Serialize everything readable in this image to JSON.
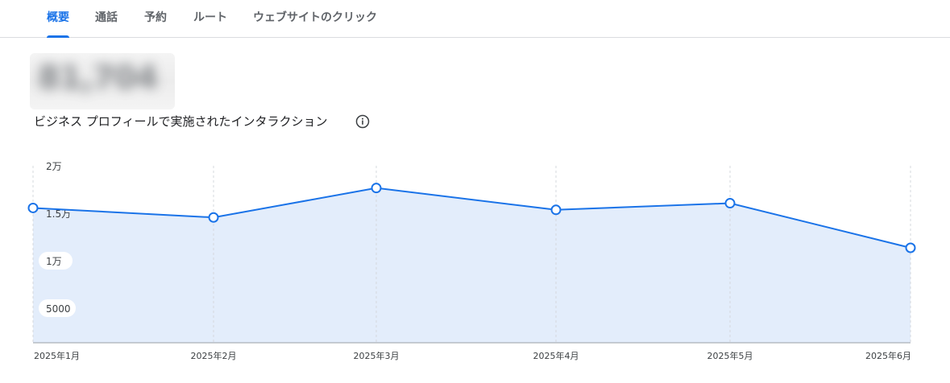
{
  "tabs": [
    {
      "label": "概要",
      "active": true
    },
    {
      "label": "通話",
      "active": false
    },
    {
      "label": "予約",
      "active": false
    },
    {
      "label": "ルート",
      "active": false
    },
    {
      "label": "ウェブサイトのクリック",
      "active": false
    }
  ],
  "summary": {
    "total_blurred": "81,704",
    "subtitle": "ビジネス プロフィールで実施されたインタラクション",
    "info_icon": "info-icon"
  },
  "colors": {
    "accent": "#1a73e8",
    "area_fill": "#e3edfb",
    "grid": "#d5d8dc",
    "text_secondary": "#5f6368"
  },
  "chart_data": {
    "type": "area",
    "categories": [
      "2025年1月",
      "2025年2月",
      "2025年3月",
      "2025年4月",
      "2025年5月",
      "2025年6月"
    ],
    "series": [
      {
        "values": [
          14200,
          13200,
          16300,
          14000,
          14700,
          10000
        ]
      }
    ],
    "y_ticks": [
      {
        "value": 20000,
        "label": "2万"
      },
      {
        "value": 15000,
        "label": "1.5万"
      },
      {
        "value": 10000,
        "label": "1万"
      },
      {
        "value": 5000,
        "label": "5000"
      }
    ],
    "ylim": [
      0,
      20000
    ],
    "grid": "vertical-dashed",
    "legend": "none"
  }
}
